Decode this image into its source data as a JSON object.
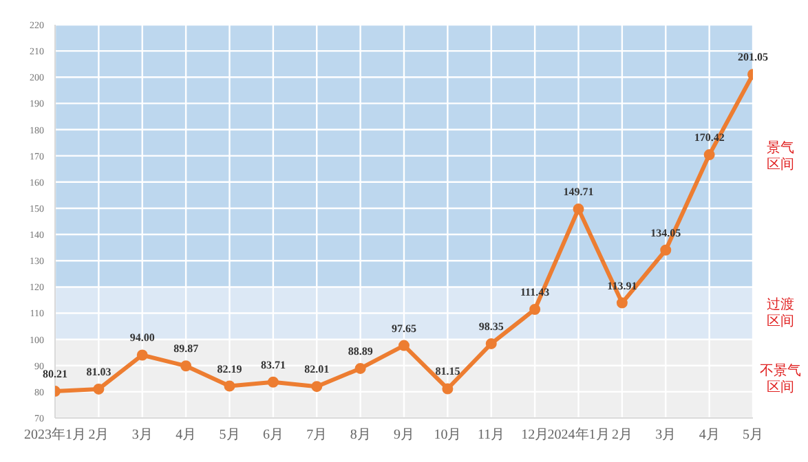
{
  "chart_data": {
    "type": "line",
    "categories": [
      "2023年1月",
      "2月",
      "3月",
      "4月",
      "5月",
      "6月",
      "7月",
      "8月",
      "9月",
      "10月",
      "11月",
      "12月",
      "2024年1月",
      "2月",
      "3月",
      "4月",
      "5月"
    ],
    "series": [
      {
        "color": "#ed7d31",
        "values": [
          80.21,
          81.03,
          94.0,
          89.87,
          82.19,
          83.71,
          82.01,
          88.89,
          97.65,
          81.15,
          98.35,
          111.43,
          149.71,
          113.91,
          134.05,
          170.42,
          201.05
        ],
        "value_labels": [
          "80.21",
          "81.03",
          "94.00",
          "89.87",
          "82.19",
          "83.71",
          "82.01",
          "88.89",
          "97.65",
          "81.15",
          "98.35",
          "111.43",
          "149.71",
          "113.91",
          "134.05",
          "170.42",
          "201.05"
        ]
      }
    ],
    "ylim": [
      70,
      220
    ],
    "yticks": [
      70,
      80,
      90,
      100,
      110,
      120,
      130,
      140,
      150,
      160,
      170,
      180,
      190,
      200,
      210,
      220
    ],
    "grid": true,
    "marker": "circle",
    "line_style": "solid",
    "bands": [
      {
        "axis": "y",
        "from": 70,
        "to": 100,
        "label": "不景气区间",
        "color": "#efefef"
      },
      {
        "axis": "y",
        "from": 100,
        "to": 120,
        "label": "过渡区间",
        "color": "#dce8f5"
      },
      {
        "axis": "y",
        "from": 120,
        "to": 220,
        "label": "景气区间",
        "color": "#bdd7ee"
      }
    ]
  }
}
